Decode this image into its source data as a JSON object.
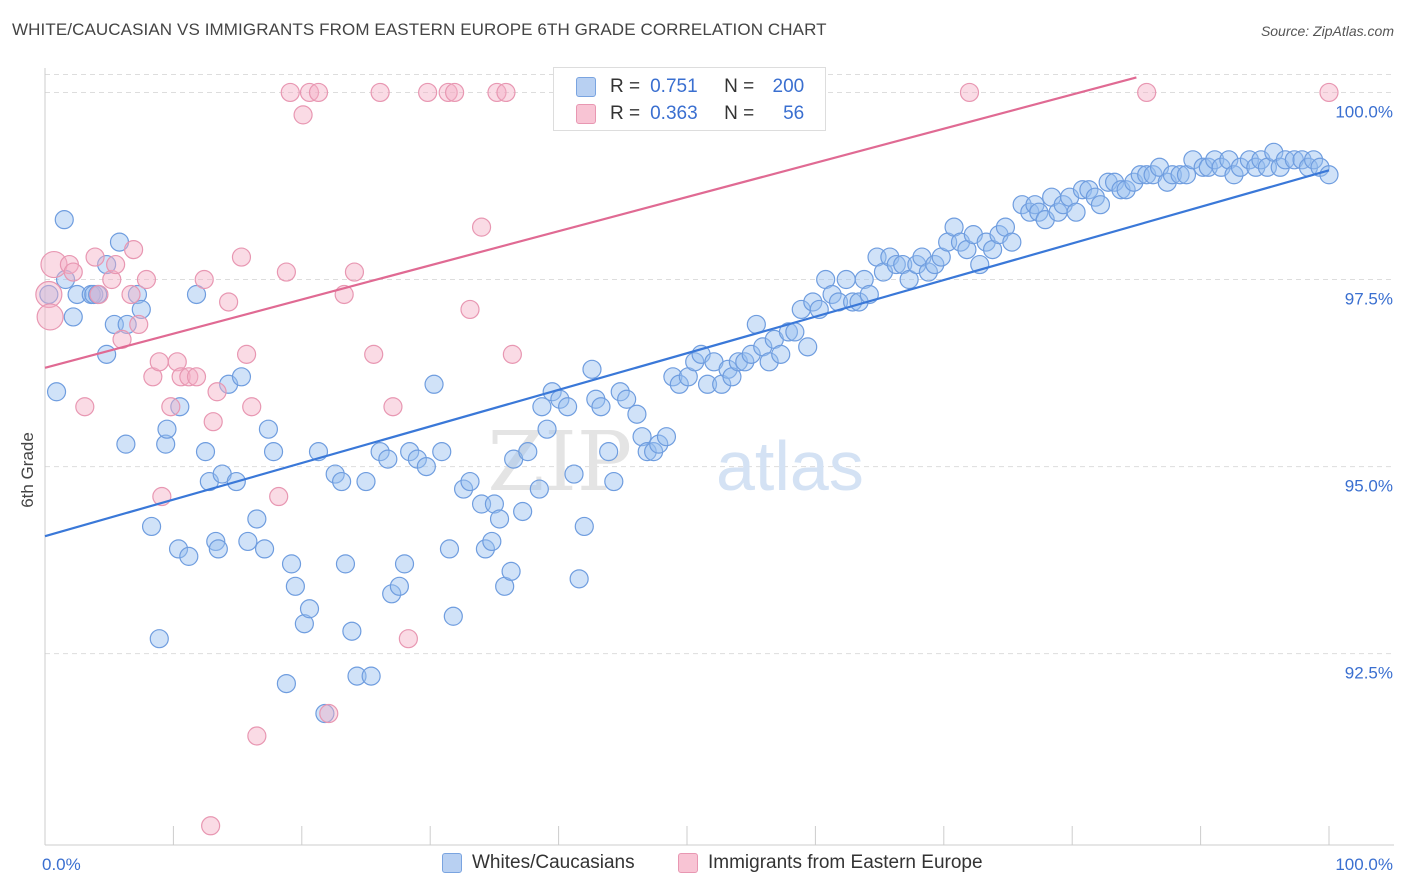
{
  "title": "WHITE/CAUCASIAN VS IMMIGRANTS FROM EASTERN EUROPE 6TH GRADE CORRELATION CHART",
  "source": "Source: ZipAtlas.com",
  "watermark": {
    "zip": "ZIP",
    "atlas": "atlas"
  },
  "legend": {
    "r_label": "R =",
    "n_label": "N =",
    "rows": [
      {
        "r": "0.751",
        "n": "200",
        "fill": "#b8d0f2",
        "stroke": "#7aa4e0"
      },
      {
        "r": "0.363",
        "n": "56",
        "fill": "#f8c4d4",
        "stroke": "#e897b2"
      }
    ]
  },
  "bottom_legend": [
    {
      "label": "Whites/Caucasians",
      "fill": "#b8d0f2",
      "stroke": "#7aa4e0"
    },
    {
      "label": "Immigrants from Eastern Europe",
      "fill": "#f8c4d4",
      "stroke": "#e897b2"
    }
  ],
  "chart_data": {
    "type": "scatter",
    "ylabel": "6th Grade",
    "xlim": [
      0,
      100
    ],
    "ylim": [
      90.05,
      100.3
    ],
    "x_tick_labels": [
      {
        "value": 0,
        "label": "0.0%"
      },
      {
        "value": 100,
        "label": "100.0%"
      }
    ],
    "y_tick_labels": [
      {
        "value": 92.5,
        "label": "92.5%"
      },
      {
        "value": 95.0,
        "label": "95.0%"
      },
      {
        "value": 97.5,
        "label": "97.5%"
      },
      {
        "value": 100.0,
        "label": "100.0%"
      }
    ],
    "grid": true,
    "series": [
      {
        "name": "Whites/Caucasians",
        "color": "#3a78d8",
        "fill": "rgba(150,190,240,0.45)",
        "stroke": "#6f9ddf",
        "trend": {
          "x": [
            0,
            100
          ],
          "y": [
            94.07,
            98.96
          ]
        },
        "points": [
          [
            0.3,
            97.3
          ],
          [
            0.9,
            96.0
          ],
          [
            1.5,
            98.3
          ],
          [
            1.6,
            97.5
          ],
          [
            2.2,
            97.0
          ],
          [
            2.5,
            97.3
          ],
          [
            3.6,
            97.3
          ],
          [
            3.8,
            97.3
          ],
          [
            4.1,
            97.3
          ],
          [
            4.8,
            97.7
          ],
          [
            4.8,
            96.5
          ],
          [
            5.4,
            96.9
          ],
          [
            5.8,
            98.0
          ],
          [
            6.4,
            96.9
          ],
          [
            7.2,
            97.3
          ],
          [
            7.5,
            97.1
          ],
          [
            6.3,
            95.3
          ],
          [
            8.3,
            94.2
          ],
          [
            8.9,
            92.7
          ],
          [
            9.4,
            95.3
          ],
          [
            9.5,
            95.5
          ],
          [
            10.4,
            93.9
          ],
          [
            10.5,
            95.8
          ],
          [
            11.2,
            93.8
          ],
          [
            11.8,
            97.3
          ],
          [
            12.5,
            95.2
          ],
          [
            12.8,
            94.8
          ],
          [
            13.3,
            94.0
          ],
          [
            13.5,
            93.9
          ],
          [
            13.8,
            94.9
          ],
          [
            14.3,
            96.1
          ],
          [
            14.9,
            94.8
          ],
          [
            15.3,
            96.2
          ],
          [
            15.8,
            94.0
          ],
          [
            16.5,
            94.3
          ],
          [
            17.1,
            93.9
          ],
          [
            17.4,
            95.5
          ],
          [
            17.8,
            95.2
          ],
          [
            18.8,
            92.1
          ],
          [
            19.2,
            93.7
          ],
          [
            19.5,
            93.4
          ],
          [
            20.2,
            92.9
          ],
          [
            20.6,
            93.1
          ],
          [
            21.3,
            95.2
          ],
          [
            21.8,
            91.7
          ],
          [
            22.6,
            94.9
          ],
          [
            23.1,
            94.8
          ],
          [
            23.4,
            93.7
          ],
          [
            23.9,
            92.8
          ],
          [
            24.3,
            92.2
          ],
          [
            25.0,
            94.8
          ],
          [
            25.4,
            92.2
          ],
          [
            26.1,
            95.2
          ],
          [
            26.7,
            95.1
          ],
          [
            27.0,
            93.3
          ],
          [
            27.6,
            93.4
          ],
          [
            28.0,
            93.7
          ],
          [
            28.4,
            95.2
          ],
          [
            29.0,
            95.1
          ],
          [
            29.7,
            95.0
          ],
          [
            30.3,
            96.1
          ],
          [
            30.9,
            95.2
          ],
          [
            31.5,
            93.9
          ],
          [
            31.8,
            93.0
          ],
          [
            32.6,
            94.7
          ],
          [
            33.1,
            94.8
          ],
          [
            34.3,
            93.9
          ],
          [
            34.8,
            94.0
          ],
          [
            34.0,
            94.5
          ],
          [
            35.0,
            94.5
          ],
          [
            35.4,
            94.3
          ],
          [
            35.8,
            93.4
          ],
          [
            36.3,
            93.6
          ],
          [
            36.5,
            95.1
          ],
          [
            37.2,
            94.4
          ],
          [
            37.6,
            95.2
          ],
          [
            38.5,
            94.7
          ],
          [
            38.7,
            95.8
          ],
          [
            39.1,
            95.5
          ],
          [
            39.5,
            96.0
          ],
          [
            40.1,
            95.9
          ],
          [
            40.7,
            95.8
          ],
          [
            41.2,
            94.9
          ],
          [
            41.6,
            93.5
          ],
          [
            42.0,
            94.2
          ],
          [
            42.6,
            96.3
          ],
          [
            42.9,
            95.9
          ],
          [
            43.3,
            95.8
          ],
          [
            43.9,
            95.2
          ],
          [
            44.3,
            94.8
          ],
          [
            44.8,
            96.0
          ],
          [
            45.3,
            95.9
          ],
          [
            46.1,
            95.7
          ],
          [
            46.5,
            95.4
          ],
          [
            46.9,
            95.2
          ],
          [
            47.4,
            95.2
          ],
          [
            47.8,
            95.3
          ],
          [
            48.4,
            95.4
          ],
          [
            48.9,
            96.2
          ],
          [
            49.4,
            96.1
          ],
          [
            50.1,
            96.2
          ],
          [
            50.6,
            96.4
          ],
          [
            51.1,
            96.5
          ],
          [
            51.6,
            96.1
          ],
          [
            52.1,
            96.4
          ],
          [
            52.7,
            96.1
          ],
          [
            53.2,
            96.3
          ],
          [
            53.5,
            96.2
          ],
          [
            54.0,
            96.4
          ],
          [
            54.5,
            96.4
          ],
          [
            55.0,
            96.5
          ],
          [
            55.4,
            96.9
          ],
          [
            55.9,
            96.6
          ],
          [
            56.4,
            96.4
          ],
          [
            56.8,
            96.7
          ],
          [
            57.3,
            96.5
          ],
          [
            57.9,
            96.8
          ],
          [
            58.4,
            96.8
          ],
          [
            58.9,
            97.1
          ],
          [
            59.4,
            96.6
          ],
          [
            59.8,
            97.2
          ],
          [
            60.3,
            97.1
          ],
          [
            60.8,
            97.5
          ],
          [
            61.3,
            97.3
          ],
          [
            61.8,
            97.2
          ],
          [
            62.4,
            97.5
          ],
          [
            62.9,
            97.2
          ],
          [
            63.4,
            97.2
          ],
          [
            63.8,
            97.5
          ],
          [
            64.2,
            97.3
          ],
          [
            64.8,
            97.8
          ],
          [
            65.3,
            97.6
          ],
          [
            65.8,
            97.8
          ],
          [
            66.3,
            97.7
          ],
          [
            66.8,
            97.7
          ],
          [
            67.3,
            97.5
          ],
          [
            67.9,
            97.7
          ],
          [
            68.3,
            97.8
          ],
          [
            68.8,
            97.6
          ],
          [
            69.3,
            97.7
          ],
          [
            69.8,
            97.8
          ],
          [
            70.3,
            98.0
          ],
          [
            70.8,
            98.2
          ],
          [
            71.3,
            98.0
          ],
          [
            71.8,
            97.9
          ],
          [
            72.3,
            98.1
          ],
          [
            72.8,
            97.7
          ],
          [
            73.3,
            98.0
          ],
          [
            73.8,
            97.9
          ],
          [
            74.3,
            98.1
          ],
          [
            74.8,
            98.2
          ],
          [
            75.3,
            98.0
          ],
          [
            76.1,
            98.5
          ],
          [
            76.7,
            98.4
          ],
          [
            77.1,
            98.5
          ],
          [
            77.4,
            98.4
          ],
          [
            77.9,
            98.3
          ],
          [
            78.4,
            98.6
          ],
          [
            78.9,
            98.4
          ],
          [
            79.3,
            98.5
          ],
          [
            79.8,
            98.6
          ],
          [
            80.3,
            98.4
          ],
          [
            80.8,
            98.7
          ],
          [
            81.3,
            98.7
          ],
          [
            81.8,
            98.6
          ],
          [
            82.2,
            98.5
          ],
          [
            82.8,
            98.8
          ],
          [
            83.3,
            98.8
          ],
          [
            83.8,
            98.7
          ],
          [
            84.2,
            98.7
          ],
          [
            84.8,
            98.8
          ],
          [
            85.3,
            98.9
          ],
          [
            85.8,
            98.9
          ],
          [
            86.3,
            98.9
          ],
          [
            86.8,
            99.0
          ],
          [
            87.4,
            98.8
          ],
          [
            87.8,
            98.9
          ],
          [
            88.4,
            98.9
          ],
          [
            88.9,
            98.9
          ],
          [
            89.4,
            99.1
          ],
          [
            90.2,
            99.0
          ],
          [
            90.6,
            99.0
          ],
          [
            91.1,
            99.1
          ],
          [
            91.6,
            99.0
          ],
          [
            92.2,
            99.1
          ],
          [
            92.6,
            98.9
          ],
          [
            93.1,
            99.0
          ],
          [
            93.8,
            99.1
          ],
          [
            94.3,
            99.0
          ],
          [
            94.7,
            99.1
          ],
          [
            95.2,
            99.0
          ],
          [
            95.7,
            99.2
          ],
          [
            96.2,
            99.0
          ],
          [
            96.6,
            99.1
          ],
          [
            97.3,
            99.1
          ],
          [
            97.9,
            99.1
          ],
          [
            98.4,
            99.0
          ],
          [
            98.8,
            99.1
          ],
          [
            99.3,
            99.0
          ],
          [
            100.0,
            98.9
          ]
        ]
      },
      {
        "name": "Immigrants from Eastern Europe",
        "color": "#e06a93",
        "fill": "rgba(245,175,198,0.45)",
        "stroke": "#e897b2",
        "trend": {
          "x": [
            0,
            85
          ],
          "y": [
            96.32,
            100.2
          ]
        },
        "points": [
          [
            0.3,
            97.3
          ],
          [
            0.7,
            97.7
          ],
          [
            0.4,
            97.0
          ],
          [
            1.9,
            97.7
          ],
          [
            2.2,
            97.6
          ],
          [
            3.1,
            95.8
          ],
          [
            3.9,
            97.8
          ],
          [
            4.2,
            97.3
          ],
          [
            5.2,
            97.5
          ],
          [
            5.5,
            97.7
          ],
          [
            6.0,
            96.7
          ],
          [
            6.7,
            97.3
          ],
          [
            6.9,
            97.9
          ],
          [
            7.3,
            96.9
          ],
          [
            7.9,
            97.5
          ],
          [
            8.4,
            96.2
          ],
          [
            8.9,
            96.4
          ],
          [
            9.1,
            94.6
          ],
          [
            9.8,
            95.8
          ],
          [
            10.3,
            96.4
          ],
          [
            10.6,
            96.2
          ],
          [
            11.2,
            96.2
          ],
          [
            11.8,
            96.2
          ],
          [
            12.4,
            97.5
          ],
          [
            12.9,
            90.2
          ],
          [
            13.1,
            95.6
          ],
          [
            13.4,
            96.0
          ],
          [
            14.3,
            97.2
          ],
          [
            15.3,
            97.8
          ],
          [
            15.7,
            96.5
          ],
          [
            16.1,
            95.8
          ],
          [
            16.5,
            91.4
          ],
          [
            18.2,
            94.6
          ],
          [
            18.8,
            97.6
          ],
          [
            19.1,
            100.0
          ],
          [
            20.1,
            99.7
          ],
          [
            20.6,
            100.0
          ],
          [
            21.3,
            100.0
          ],
          [
            22.1,
            91.7
          ],
          [
            23.3,
            97.3
          ],
          [
            24.1,
            97.6
          ],
          [
            25.6,
            96.5
          ],
          [
            26.1,
            100.0
          ],
          [
            27.1,
            95.8
          ],
          [
            28.3,
            92.7
          ],
          [
            29.8,
            100.0
          ],
          [
            31.4,
            100.0
          ],
          [
            31.9,
            100.0
          ],
          [
            33.1,
            97.1
          ],
          [
            34.0,
            98.2
          ],
          [
            35.2,
            100.0
          ],
          [
            35.9,
            100.0
          ],
          [
            36.4,
            96.5
          ],
          [
            85.8,
            100.0
          ],
          [
            100.0,
            100.0
          ],
          [
            72.0,
            100.0
          ]
        ]
      }
    ]
  }
}
